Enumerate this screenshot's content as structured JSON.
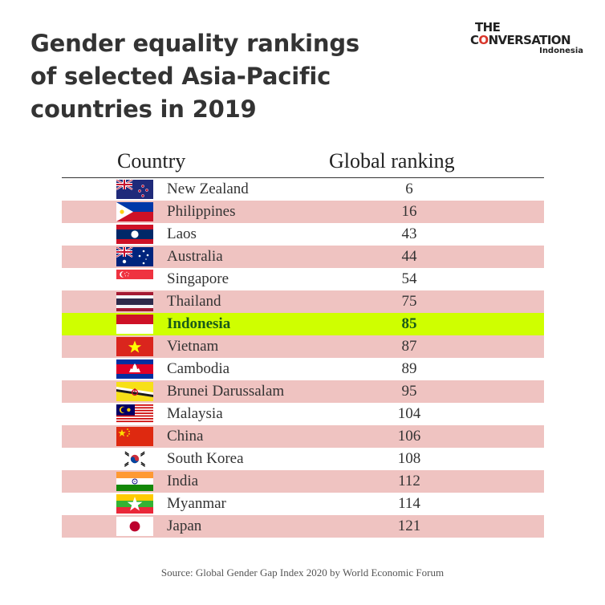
{
  "title_lines": [
    "Gender equality rankings",
    "of selected Asia-Pacific",
    "countries in 2019"
  ],
  "logo": {
    "line1": "THE",
    "line2_pre": "C",
    "line2_o": "O",
    "line2_post": "NVERSATION",
    "sub": "Indonesia"
  },
  "colors": {
    "row_alt": "#efc3c1",
    "highlight": "#cfff00",
    "highlight_text": "#1a5a1a",
    "brand_red": "#d8352a"
  },
  "chart_data": {
    "type": "table",
    "columns": [
      "Country",
      "Global ranking"
    ],
    "rows": [
      {
        "country": "New Zealand",
        "rank": "6",
        "flag": "new-zealand-flag-icon"
      },
      {
        "country": "Philippines",
        "rank": "16",
        "flag": "philippines-flag-icon"
      },
      {
        "country": "Laos",
        "rank": "43",
        "flag": "laos-flag-icon"
      },
      {
        "country": "Australia",
        "rank": "44",
        "flag": "australia-flag-icon"
      },
      {
        "country": "Singapore",
        "rank": "54",
        "flag": "singapore-flag-icon"
      },
      {
        "country": "Thailand",
        "rank": "75",
        "flag": "thailand-flag-icon"
      },
      {
        "country": "Indonesia",
        "rank": "85",
        "flag": "indonesia-flag-icon",
        "highlight": true
      },
      {
        "country": "Vietnam",
        "rank": "87",
        "flag": "vietnam-flag-icon"
      },
      {
        "country": "Cambodia",
        "rank": "89",
        "flag": "cambodia-flag-icon"
      },
      {
        "country": "Brunei Darussalam",
        "rank": "95",
        "flag": "brunei-flag-icon"
      },
      {
        "country": "Malaysia",
        "rank": "104",
        "flag": "malaysia-flag-icon"
      },
      {
        "country": "China",
        "rank": "106",
        "flag": "china-flag-icon"
      },
      {
        "country": "South Korea",
        "rank": "108",
        "flag": "south-korea-flag-icon"
      },
      {
        "country": "India",
        "rank": "112",
        "flag": "india-flag-icon"
      },
      {
        "country": "Myanmar",
        "rank": "114",
        "flag": "myanmar-flag-icon"
      },
      {
        "country": "Japan",
        "rank": "121",
        "flag": "japan-flag-icon"
      }
    ]
  },
  "source": "Source: Global Gender Gap Index 2020 by World Economic Forum"
}
